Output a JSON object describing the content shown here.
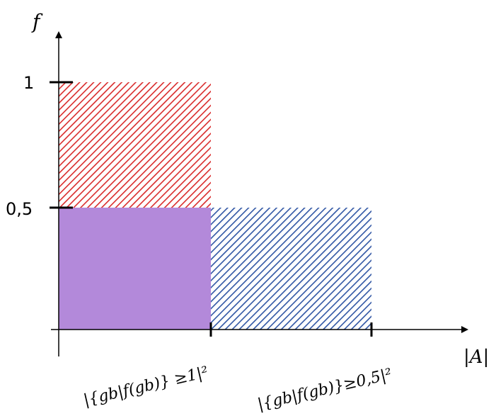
{
  "figure": {
    "y_axis_label": "f",
    "x_axis_label": "|A|",
    "y_ticks": [
      "1",
      "0,5"
    ],
    "x_tick_labels": [
      "|{gb|f(gb)} ≥1|²",
      "|{gb|f(gb)}≥0,5|²"
    ]
  },
  "colors": {
    "red_hatch": "#d92b2b",
    "blue_hatch": "#2f55a4",
    "purple_fill": "#b389da",
    "axis": "#000000"
  }
}
